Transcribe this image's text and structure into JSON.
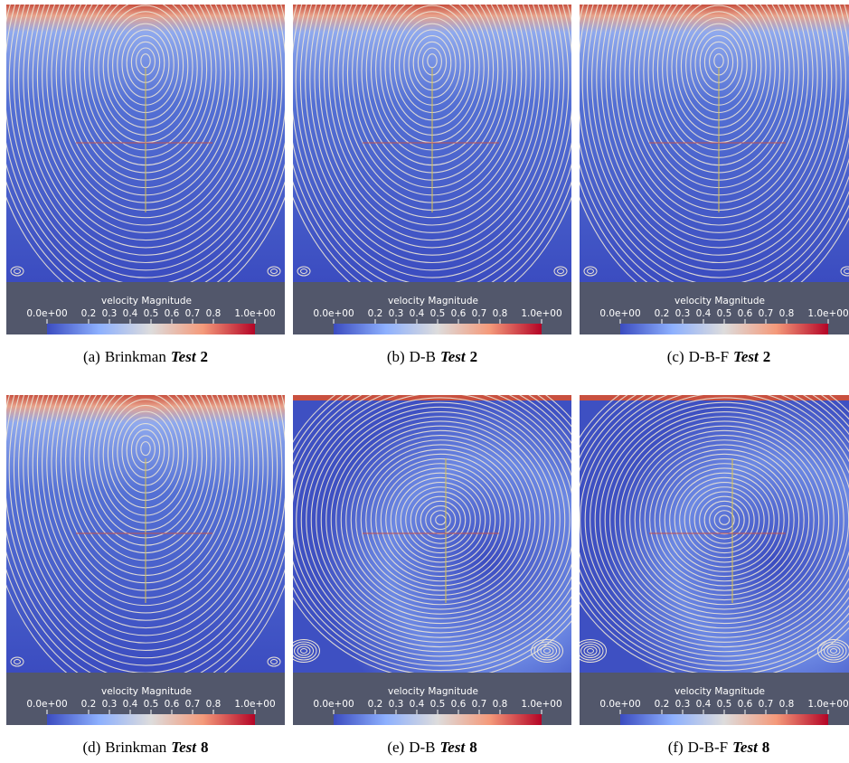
{
  "panels": [
    {
      "caption": {
        "label": "(a)",
        "method": "Brinkman",
        "test": "Test",
        "number": "2"
      },
      "colorbar": {
        "title": "velocity Magnitude",
        "ticks": [
          {
            "value": 0,
            "label": "0.0e+00"
          },
          0.2,
          0.3,
          0.4,
          0.5,
          0.6,
          0.7,
          0.8,
          {
            "value": 1,
            "label": "1.0e+00"
          }
        ]
      }
    },
    {
      "caption": {
        "label": "(b)",
        "method": "D-B",
        "test": "Test",
        "number": "2"
      },
      "colorbar": {
        "title": "velocity Magnitude",
        "ticks": [
          {
            "value": 0,
            "label": "0.0e+00"
          },
          0.2,
          0.3,
          0.4,
          0.5,
          0.6,
          0.7,
          0.8,
          {
            "value": 1,
            "label": "1.0e+00"
          }
        ]
      }
    },
    {
      "caption": {
        "label": "(c)",
        "method": "D-B-F",
        "test": "Test",
        "number": "2"
      },
      "colorbar": {
        "title": "velocity Magnitude",
        "ticks": [
          {
            "value": 0,
            "label": "0.0e+00"
          },
          0.2,
          0.3,
          0.4,
          0.5,
          0.6,
          0.7,
          0.8,
          {
            "value": 1,
            "label": "1.0e+00"
          }
        ]
      }
    },
    {
      "caption": {
        "label": "(d)",
        "method": "Brinkman",
        "test": "Test",
        "number": "8"
      },
      "colorbar": {
        "title": "velocity Magnitude",
        "ticks": [
          {
            "value": 0,
            "label": "0.0e+00"
          },
          0.2,
          0.3,
          0.4,
          0.5,
          0.6,
          0.7,
          0.8,
          {
            "value": 1,
            "label": "1.0e+00"
          }
        ]
      }
    },
    {
      "caption": {
        "label": "(e)",
        "method": "D-B",
        "test": "Test",
        "number": "8"
      },
      "colorbar": {
        "title": "velocity Magnitude",
        "ticks": [
          {
            "value": 0,
            "label": "0.0e+00"
          },
          0.2,
          0.3,
          0.4,
          0.5,
          0.6,
          0.7,
          0.8,
          {
            "value": 1,
            "label": "1.0e+00"
          }
        ]
      }
    },
    {
      "caption": {
        "label": "(f)",
        "method": "D-B-F",
        "test": "Test",
        "number": "8"
      },
      "colorbar": {
        "title": "velocity Magnitude",
        "ticks": [
          {
            "value": 0,
            "label": "0.0e+00"
          },
          0.2,
          0.3,
          0.4,
          0.5,
          0.6,
          0.7,
          0.8,
          {
            "value": 1,
            "label": "1.0e+00"
          }
        ]
      }
    }
  ]
}
